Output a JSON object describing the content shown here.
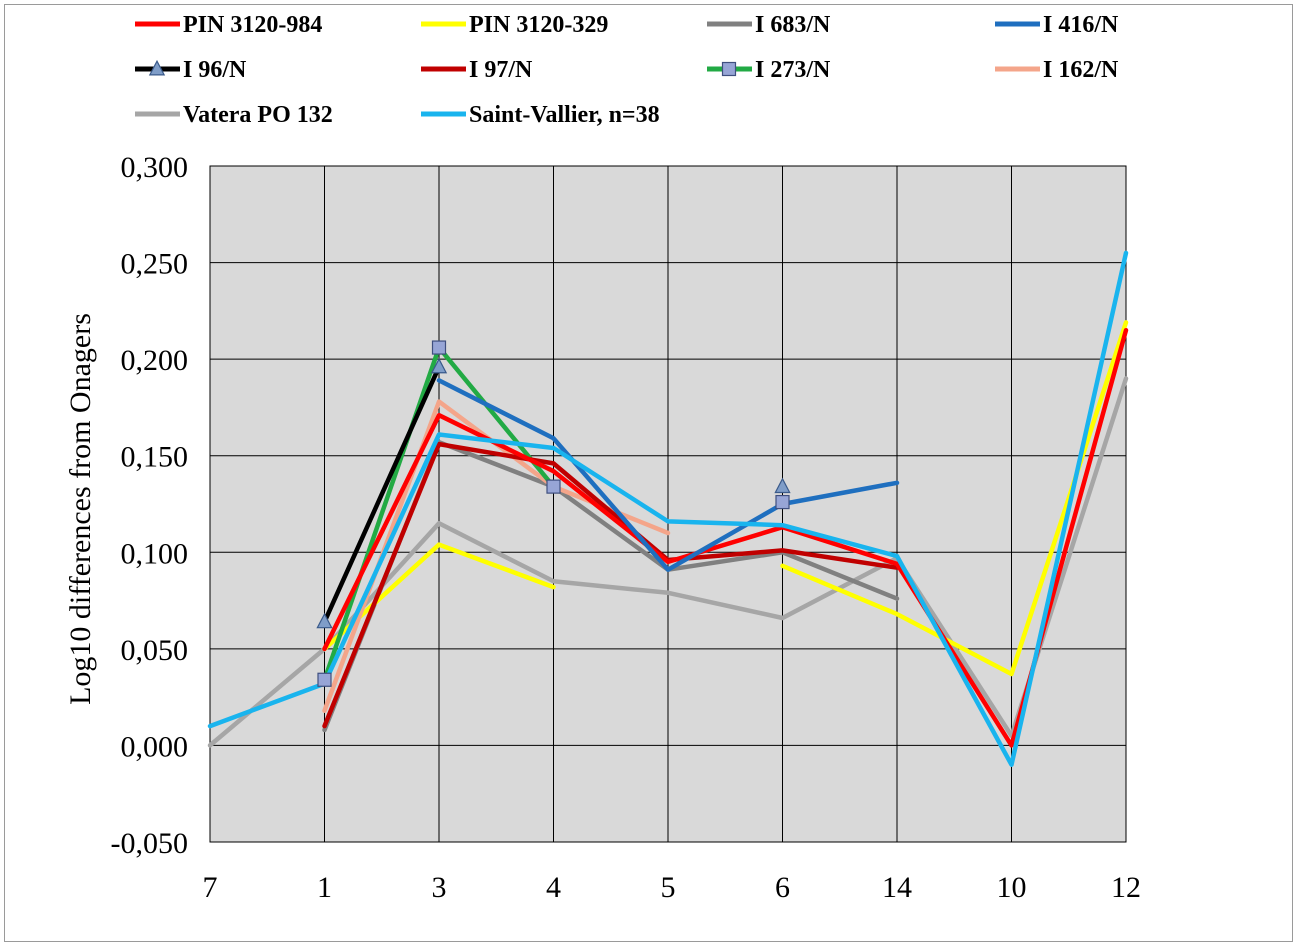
{
  "chart_data": {
    "type": "line",
    "title": "",
    "xlabel": "",
    "ylabel": "Log10 differences from Onagers",
    "categories": [
      "7",
      "1",
      "3",
      "4",
      "5",
      "6",
      "14",
      "10",
      "12"
    ],
    "ylim": [
      -0.05,
      0.3
    ],
    "yticks": [
      -0.05,
      0,
      0.05,
      0.1,
      0.15,
      0.2,
      0.25,
      0.3
    ],
    "ytick_labels": [
      "-0,050",
      "0,000",
      "0,050",
      "0,100",
      "0,150",
      "0,200",
      "0,250",
      "0,300"
    ],
    "grid": true,
    "plot_background": "#d9d9d9",
    "legend_position": "top",
    "series": [
      {
        "name": "PIN 3120-984",
        "color": "#ff0000",
        "marker": "none",
        "values": [
          null,
          0.05,
          0.171,
          0.142,
          0.095,
          0.113,
          0.094,
          0.0,
          0.215
        ]
      },
      {
        "name": "PIN 3120-329",
        "color": "#ffff00",
        "marker": "none",
        "values": [
          null,
          0.05,
          0.104,
          0.082,
          null,
          0.093,
          0.068,
          0.037,
          0.219
        ]
      },
      {
        "name": "I 683/N",
        "color": "#808080",
        "marker": "none",
        "values": [
          null,
          0.008,
          0.157,
          0.134,
          0.091,
          0.1,
          0.076,
          null,
          null
        ]
      },
      {
        "name": "I 416/N",
        "color": "#1f6fbf",
        "marker": "none",
        "values": [
          null,
          null,
          0.189,
          0.159,
          0.091,
          0.125,
          0.136,
          null,
          null
        ]
      },
      {
        "name": "I 96/N",
        "color": "#000000",
        "marker": "triangle",
        "values": [
          null,
          0.064,
          0.196,
          null,
          null,
          0.134,
          null,
          null,
          null
        ]
      },
      {
        "name": "I 97/N",
        "color": "#c00000",
        "marker": "none",
        "values": [
          null,
          0.01,
          0.156,
          0.146,
          0.096,
          0.101,
          0.092,
          null,
          null
        ]
      },
      {
        "name": "I 273/N",
        "color": "#22aa44",
        "marker": "square",
        "values": [
          null,
          0.034,
          0.206,
          0.134,
          null,
          0.126,
          null,
          null,
          null
        ]
      },
      {
        "name": "I 162/N",
        "color": "#f4a58a",
        "marker": "none",
        "values": [
          null,
          0.018,
          0.178,
          0.134,
          0.11,
          null,
          null,
          null,
          null
        ]
      },
      {
        "name": "Vatera PO 132",
        "color": "#a6a6a6",
        "marker": "none",
        "values": [
          0.0,
          0.05,
          0.115,
          0.085,
          0.079,
          0.066,
          0.097,
          0.005,
          0.19
        ]
      },
      {
        "name": "Saint-Vallier, n=38",
        "color": "#19b4ee",
        "marker": "none",
        "values": [
          0.01,
          0.032,
          0.161,
          0.154,
          0.116,
          0.114,
          0.098,
          -0.01,
          0.255
        ]
      }
    ]
  }
}
